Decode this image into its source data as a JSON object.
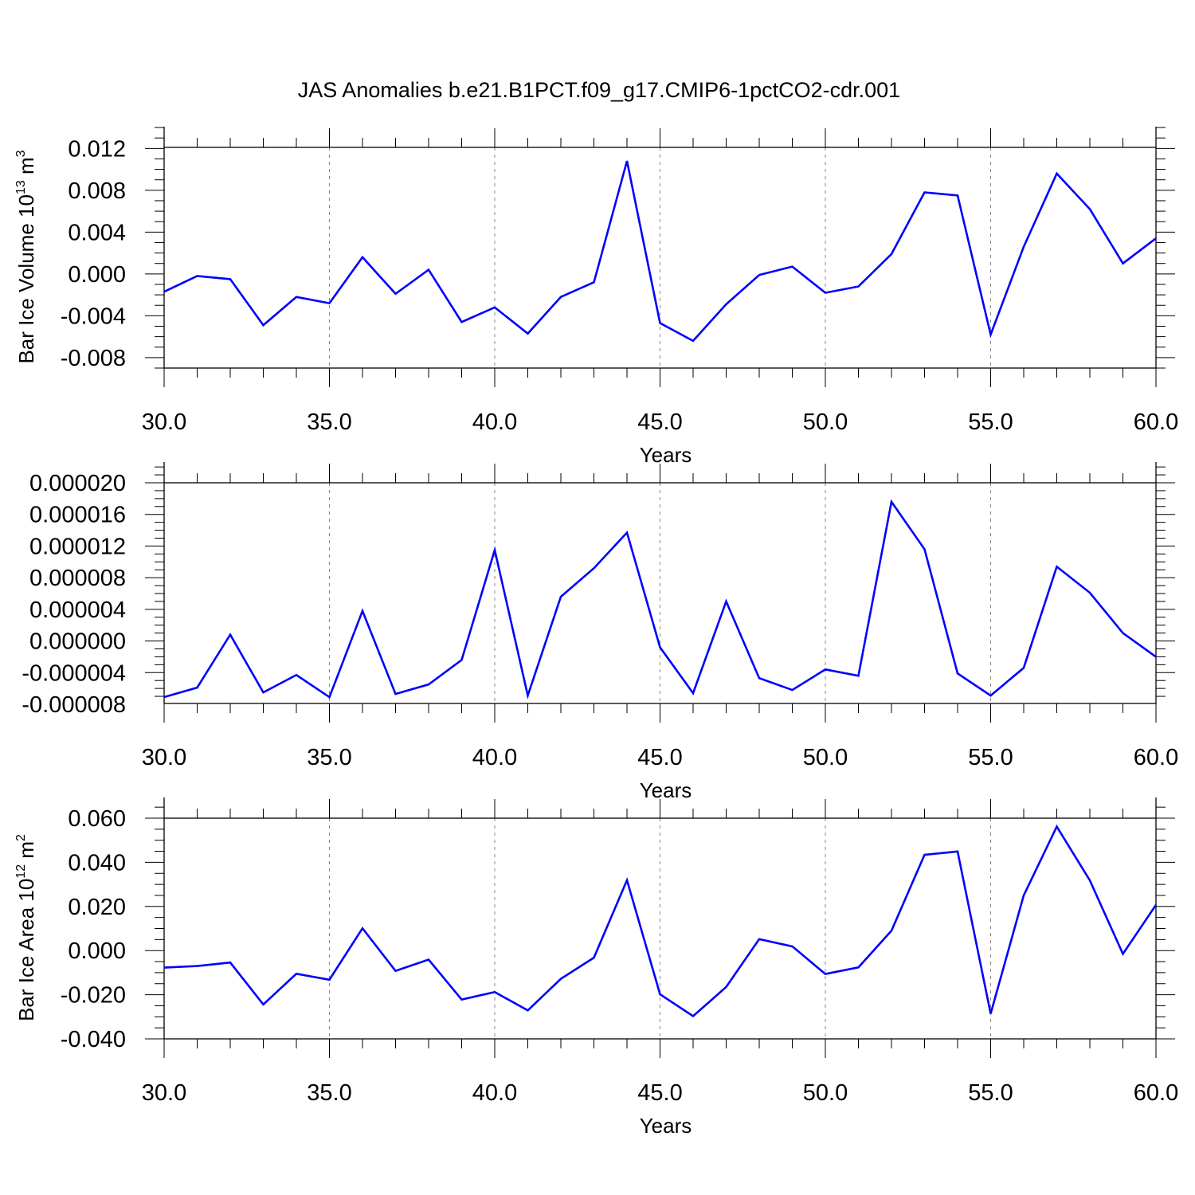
{
  "title": "JAS Anomalies b.e21.B1PCT.f09_g17.CMIP6-1pctCO2-cdr.001",
  "colors": {
    "line": "#0000ff",
    "axis": "#000000",
    "grid": "#888888"
  },
  "chart_data": [
    {
      "type": "line",
      "title": "",
      "xlabel": "Years",
      "ylabel": {
        "text": "Bar Ice Volume 10",
        "sup": "13",
        "unit": " m",
        "unit_sup": "3"
      },
      "xlim": [
        30,
        60
      ],
      "ylim": [
        -0.009,
        0.0121
      ],
      "xticks": [
        30,
        35,
        40,
        45,
        50,
        55,
        60
      ],
      "xtick_labels": [
        "30.0",
        "35.0",
        "40.0",
        "45.0",
        "50.0",
        "55.0",
        "60.0"
      ],
      "yticks": [
        -0.008,
        -0.004,
        0.0,
        0.004,
        0.008,
        0.012
      ],
      "ytick_labels": [
        "-0.008",
        "-0.004",
        "0.000",
        "0.004",
        "0.008",
        "0.012"
      ],
      "grid": "vertical dashed at major x ticks",
      "x": [
        30,
        31,
        32,
        33,
        34,
        35,
        36,
        37,
        38,
        39,
        40,
        41,
        42,
        43,
        44,
        45,
        46,
        47,
        48,
        49,
        50,
        51,
        52,
        53,
        54,
        55,
        56,
        57,
        58,
        59,
        60
      ],
      "series": [
        {
          "values": [
            -0.0017,
            -0.0002,
            -0.0005,
            -0.0049,
            -0.0022,
            -0.0028,
            0.0016,
            -0.0019,
            0.0004,
            -0.0046,
            -0.0032,
            -0.0057,
            -0.0022,
            -0.0008,
            0.0108,
            -0.0047,
            -0.0064,
            -0.0029,
            -0.0001,
            0.0007,
            -0.0018,
            -0.0012,
            0.0019,
            0.0078,
            0.0075,
            -0.0058,
            0.0026,
            0.0096,
            0.0062,
            0.001,
            0.0034
          ]
        }
      ]
    },
    {
      "type": "line",
      "title": "",
      "xlabel": "Years",
      "ylabel": null,
      "xlim": [
        30,
        60
      ],
      "ylim": [
        -7.9e-06,
        2e-05
      ],
      "xticks": [
        30,
        35,
        40,
        45,
        50,
        55,
        60
      ],
      "xtick_labels": [
        "30.0",
        "35.0",
        "40.0",
        "45.0",
        "50.0",
        "55.0",
        "60.0"
      ],
      "yticks": [
        -8e-06,
        -4e-06,
        0.0,
        4e-06,
        8e-06,
        1.2e-05,
        1.6e-05,
        2e-05
      ],
      "ytick_labels": [
        "-0.000008",
        "-0.000004",
        "0.000000",
        "0.000004",
        "0.000008",
        "0.000012",
        "0.000016",
        "0.000020"
      ],
      "grid": "vertical dashed at major x ticks",
      "x": [
        30,
        31,
        32,
        33,
        34,
        35,
        36,
        37,
        38,
        39,
        40,
        41,
        42,
        43,
        44,
        45,
        46,
        47,
        48,
        49,
        50,
        51,
        52,
        53,
        54,
        55,
        56,
        57,
        58,
        59,
        60
      ],
      "series": [
        {
          "values": [
            -7.1e-06,
            -5.9e-06,
            8e-07,
            -6.5e-06,
            -4.3e-06,
            -7.1e-06,
            3.8e-06,
            -6.7e-06,
            -5.5e-06,
            -2.4e-06,
            1.15e-05,
            -6.9e-06,
            5.6e-06,
            9.2e-06,
            1.37e-05,
            -8e-07,
            -6.6e-06,
            5e-06,
            -4.7e-06,
            -6.2e-06,
            -3.6e-06,
            -4.4e-06,
            1.76e-05,
            1.16e-05,
            -4.1e-06,
            -6.9e-06,
            -3.4e-06,
            9.4e-06,
            6.1e-06,
            1e-06,
            -2e-06
          ]
        }
      ]
    },
    {
      "type": "line",
      "title": "",
      "xlabel": "Years",
      "ylabel": {
        "text": "Bar Ice Area 10",
        "sup": "12",
        "unit": " m",
        "unit_sup": "2"
      },
      "xlim": [
        30,
        60
      ],
      "ylim": [
        -0.04,
        0.06
      ],
      "xticks": [
        30,
        35,
        40,
        45,
        50,
        55,
        60
      ],
      "xtick_labels": [
        "30.0",
        "35.0",
        "40.0",
        "45.0",
        "50.0",
        "55.0",
        "60.0"
      ],
      "yticks": [
        -0.04,
        -0.02,
        0.0,
        0.02,
        0.04,
        0.06
      ],
      "ytick_labels": [
        "-0.040",
        "-0.020",
        "0.000",
        "0.020",
        "0.040",
        "0.060"
      ],
      "grid": "vertical dashed at major x ticks",
      "x": [
        30,
        31,
        32,
        33,
        34,
        35,
        36,
        37,
        38,
        39,
        40,
        41,
        42,
        43,
        44,
        45,
        46,
        47,
        48,
        49,
        50,
        51,
        52,
        53,
        54,
        55,
        56,
        57,
        58,
        59,
        60
      ],
      "series": [
        {
          "values": [
            -0.0077,
            -0.007,
            -0.0054,
            -0.0244,
            -0.0105,
            -0.0132,
            0.0101,
            -0.0092,
            -0.0041,
            -0.0222,
            -0.0188,
            -0.0271,
            -0.0128,
            -0.0032,
            0.0319,
            -0.0198,
            -0.0297,
            -0.0165,
            0.0052,
            0.0019,
            -0.0106,
            -0.0076,
            0.009,
            0.0434,
            0.0449,
            -0.0286,
            0.025,
            0.0562,
            0.0318,
            -0.0015,
            0.0207
          ]
        }
      ]
    }
  ]
}
